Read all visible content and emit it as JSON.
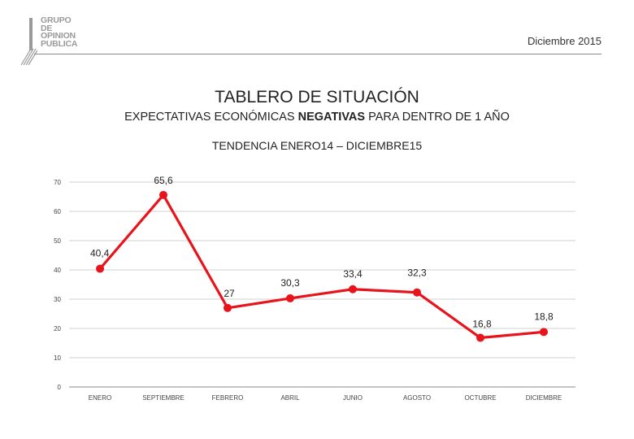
{
  "header": {
    "logo_lines": [
      "GRUPO",
      "DE",
      "OPINION",
      "PUBLICA"
    ],
    "date": "Diciembre 2015"
  },
  "title": "TABLERO DE SITUACIÓN",
  "subtitle": {
    "before": "EXPECTATIVAS ECONÓMICAS ",
    "bold": "NEGATIVAS",
    "after": " PARA DENTRO DE 1 AÑO"
  },
  "trend_label": "TENDENCIA ENERO14 – DICIEMBRE15",
  "chart_data": {
    "type": "line",
    "categories": [
      "ENERO",
      "SEPTIEMBRE",
      "FEBRERO",
      "ABRIL",
      "JUNIO",
      "AGOSTO",
      "OCTUBRE",
      "DICIEMBRE"
    ],
    "values": [
      40.4,
      65.6,
      27,
      30.3,
      33.4,
      32.3,
      16.8,
      18.8
    ],
    "data_labels": [
      "40,4",
      "65,6",
      "27",
      "30,3",
      "33,4",
      "32,3",
      "16,8",
      "18,8"
    ],
    "yticks": [
      "0",
      "10",
      "20",
      "30",
      "40",
      "50",
      "60",
      "70"
    ],
    "ylim": [
      0,
      70
    ],
    "grid": true,
    "series_color": "#e8141b",
    "grid_color": "#d0d0d0"
  }
}
